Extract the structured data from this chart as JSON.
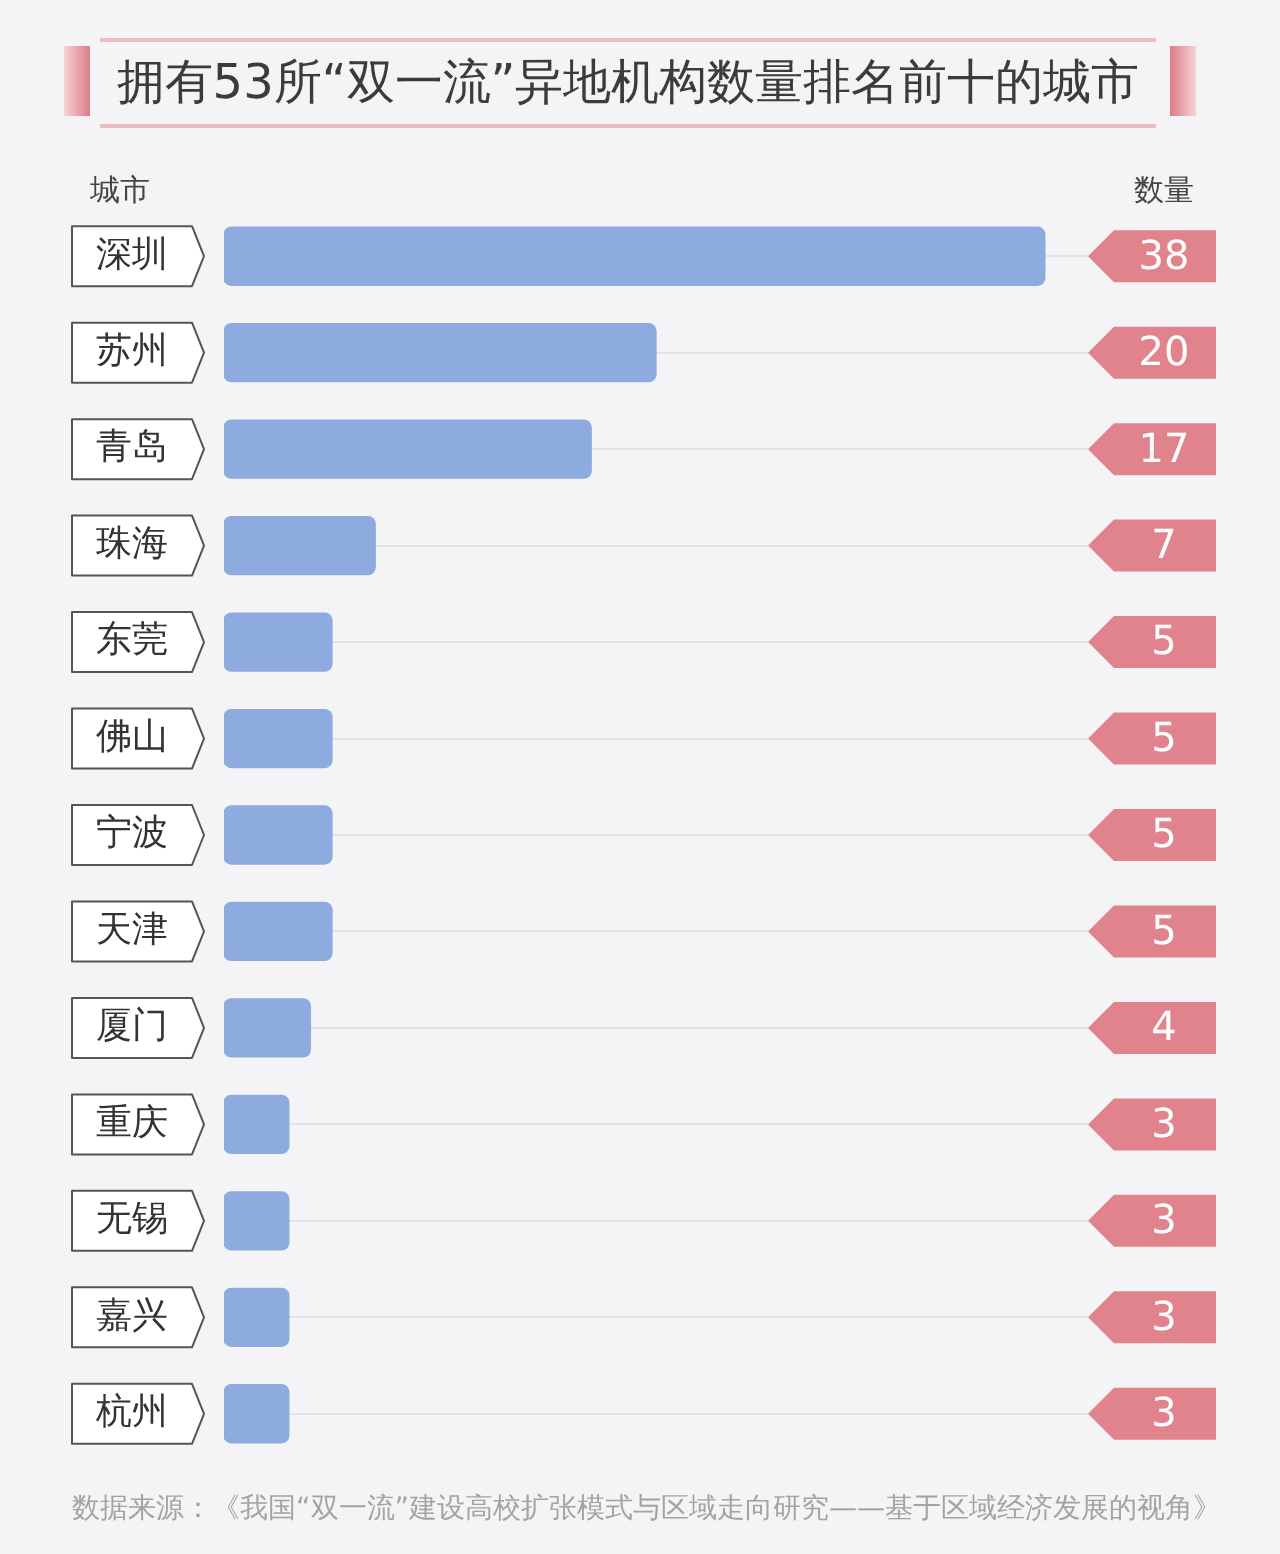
{
  "chart_data": {
    "type": "bar",
    "orientation": "horizontal",
    "title": "拥有53所“双一流”异地机构数量排名前十的城市",
    "ylabel": "城市",
    "xlabel": "数量",
    "categories": [
      "深圳",
      "苏州",
      "青岛",
      "珠海",
      "东莞",
      "佛山",
      "宁波",
      "天津",
      "厦门",
      "重庆",
      "无锡",
      "嘉兴",
      "杭州"
    ],
    "values": [
      38,
      20,
      17,
      7,
      5,
      5,
      5,
      5,
      4,
      3,
      3,
      3,
      3
    ],
    "color": "#8eabdf",
    "data_labels": true,
    "grid": "y",
    "tick_labels": "y",
    "annotations": [
      "数据来源：《我国“双一流”建设高校扩张模式与区域走向研究——基于区域经济发展的视角》"
    ]
  }
}
